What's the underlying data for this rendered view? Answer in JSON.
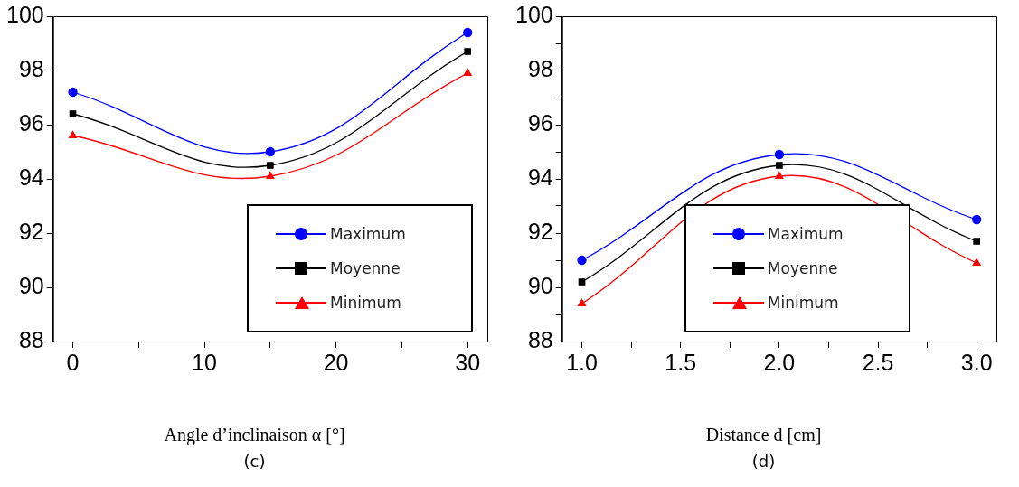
{
  "chart_data": [
    {
      "type": "line",
      "xlabel": "Angle d’inclinaison α [°]",
      "x": [
        0,
        15,
        30
      ],
      "series": [
        {
          "name": "Maximum",
          "color": "#0000ff",
          "marker": "circle",
          "values": [
            97.2,
            95.0,
            99.4
          ]
        },
        {
          "name": "Moyenne",
          "color": "#000000",
          "marker": "square",
          "values": [
            96.4,
            94.5,
            98.7
          ]
        },
        {
          "name": "Minimum",
          "color": "#ff0000",
          "marker": "triangle",
          "values": [
            95.6,
            94.1,
            97.9
          ]
        }
      ],
      "xlim": [
        -1.5,
        31.5
      ],
      "xticks": [
        0,
        {
          "value": 5,
          "label": null
        },
        10,
        {
          "value": 15,
          "label": null
        },
        20,
        {
          "value": 25,
          "label": null
        },
        30
      ],
      "ylim": [
        88,
        100
      ],
      "yticks": [
        88,
        90,
        92,
        94,
        96,
        98,
        100
      ],
      "grid": false,
      "legend": "bottom right",
      "annotations": [
        "(c)"
      ]
    },
    {
      "type": "line",
      "xlabel": "Distance d [cm]",
      "x": [
        1,
        2,
        3
      ],
      "series": [
        {
          "name": "Maximum",
          "color": "#0000ff",
          "marker": "circle",
          "values": [
            91.0,
            94.9,
            92.5
          ]
        },
        {
          "name": "Moyenne",
          "color": "#000000",
          "marker": "square",
          "values": [
            90.2,
            94.5,
            91.7
          ]
        },
        {
          "name": "Minimum",
          "color": "#ff0000",
          "marker": "triangle",
          "values": [
            89.4,
            94.1,
            90.9
          ]
        }
      ],
      "xlim": [
        0.9,
        3.1
      ],
      "xticks": [
        {
          "value": 1,
          "label": "1.0"
        },
        {
          "value": 1.25,
          "label": null
        },
        {
          "value": 1.5,
          "label": "1.5"
        },
        {
          "value": 1.75,
          "label": null
        },
        {
          "value": 2,
          "label": "2.0"
        },
        {
          "value": 2.25,
          "label": null
        },
        {
          "value": 2.5,
          "label": "2.5"
        },
        {
          "value": 2.75,
          "label": null
        },
        {
          "value": 3,
          "label": "3.0"
        }
      ],
      "ylim": [
        88,
        100
      ],
      "yticks": [
        88,
        {
          "value": 89,
          "label": null
        },
        90,
        {
          "value": 91,
          "label": null
        },
        92,
        {
          "value": 93,
          "label": null
        },
        94,
        {
          "value": 95,
          "label": null
        },
        96,
        {
          "value": 97,
          "label": null
        },
        98,
        {
          "value": 99,
          "label": null
        },
        100
      ],
      "grid": false,
      "legend": "bottom",
      "annotations": [
        "(d)"
      ]
    }
  ]
}
